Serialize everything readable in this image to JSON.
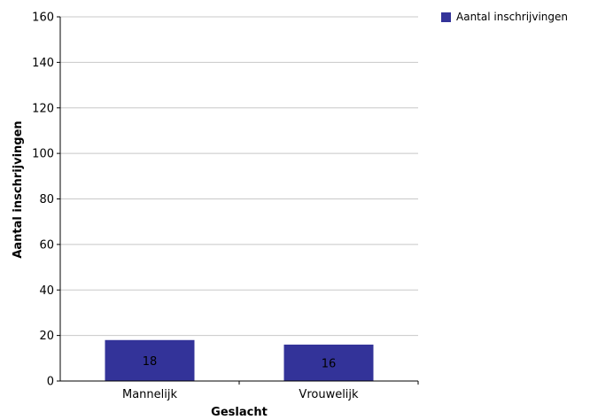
{
  "chart_data": {
    "type": "bar",
    "title": "",
    "xlabel": "Geslacht",
    "ylabel": "Aantal inschrijvingen",
    "categories": [
      "Mannelijk",
      "Vrouwelijk"
    ],
    "series": [
      {
        "name": "Aantal inschrijvingen",
        "values": [
          18,
          16
        ],
        "color": "#333399"
      }
    ],
    "ylim": [
      0,
      160
    ],
    "yticks": [
      0,
      20,
      40,
      60,
      80,
      100,
      120,
      140,
      160
    ],
    "ytick_labels": [
      "0",
      "20",
      "40",
      "60",
      "80",
      "100",
      "120",
      "140",
      "160"
    ],
    "data_labels": [
      "18",
      "16"
    ],
    "grid": true,
    "legend_position": "top-right"
  }
}
